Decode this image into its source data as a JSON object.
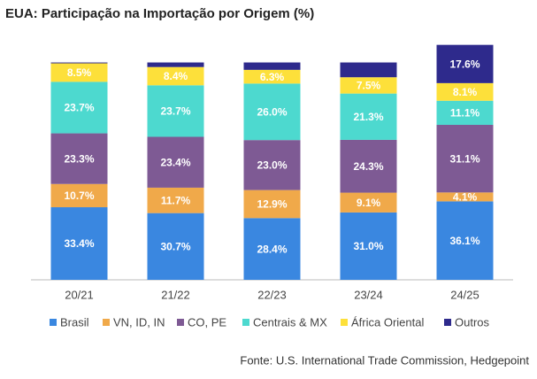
{
  "chart_data": {
    "type": "stacked_bar",
    "title": "EUA: Participação na Importação por Origem (%)",
    "categories": [
      "20/21",
      "21/22",
      "22/23",
      "23/24",
      "24/25"
    ],
    "series": [
      {
        "name": "Brasil",
        "color": "#3a87e0",
        "values": [
          33.4,
          30.7,
          28.4,
          31.0,
          36.1
        ],
        "value_labels": [
          "33.4%",
          "30.7%",
          "28.4%",
          "31.0%",
          "36.1%"
        ]
      },
      {
        "name": "VN, ID, IN",
        "color": "#f0a94a",
        "values": [
          10.7,
          11.7,
          12.9,
          9.1,
          4.1
        ],
        "value_labels": [
          "10.7%",
          "11.7%",
          "12.9%",
          "9.1%",
          "4.1%"
        ]
      },
      {
        "name": "CO, PE",
        "color": "#7e5a94",
        "values": [
          23.3,
          23.4,
          23.0,
          24.3,
          31.1
        ],
        "value_labels": [
          "23.3%",
          "23.4%",
          "23.0%",
          "24.3%",
          "31.1%"
        ]
      },
      {
        "name": "Centrais & MX",
        "color": "#4dd9cf",
        "values": [
          23.7,
          23.7,
          26.0,
          21.3,
          11.1
        ],
        "value_labels": [
          "23.7%",
          "23.7%",
          "26.0%",
          "21.3%",
          "11.1%"
        ]
      },
      {
        "name": "África Oriental",
        "color": "#fde03a",
        "values": [
          8.5,
          8.4,
          6.3,
          7.5,
          8.1
        ],
        "value_labels": [
          "8.5%",
          "8.4%",
          "6.3%",
          "7.5%",
          "8.1%"
        ]
      },
      {
        "name": "Outros",
        "color": "#2e2a8c",
        "values": [
          0.4,
          2.1,
          3.4,
          6.8,
          17.6
        ],
        "value_labels": [
          null,
          null,
          null,
          null,
          "17.6%"
        ]
      }
    ],
    "ylim": [
      0,
      110
    ],
    "source": "Fonte: U.S. International Trade Commission, Hedgepoint"
  }
}
